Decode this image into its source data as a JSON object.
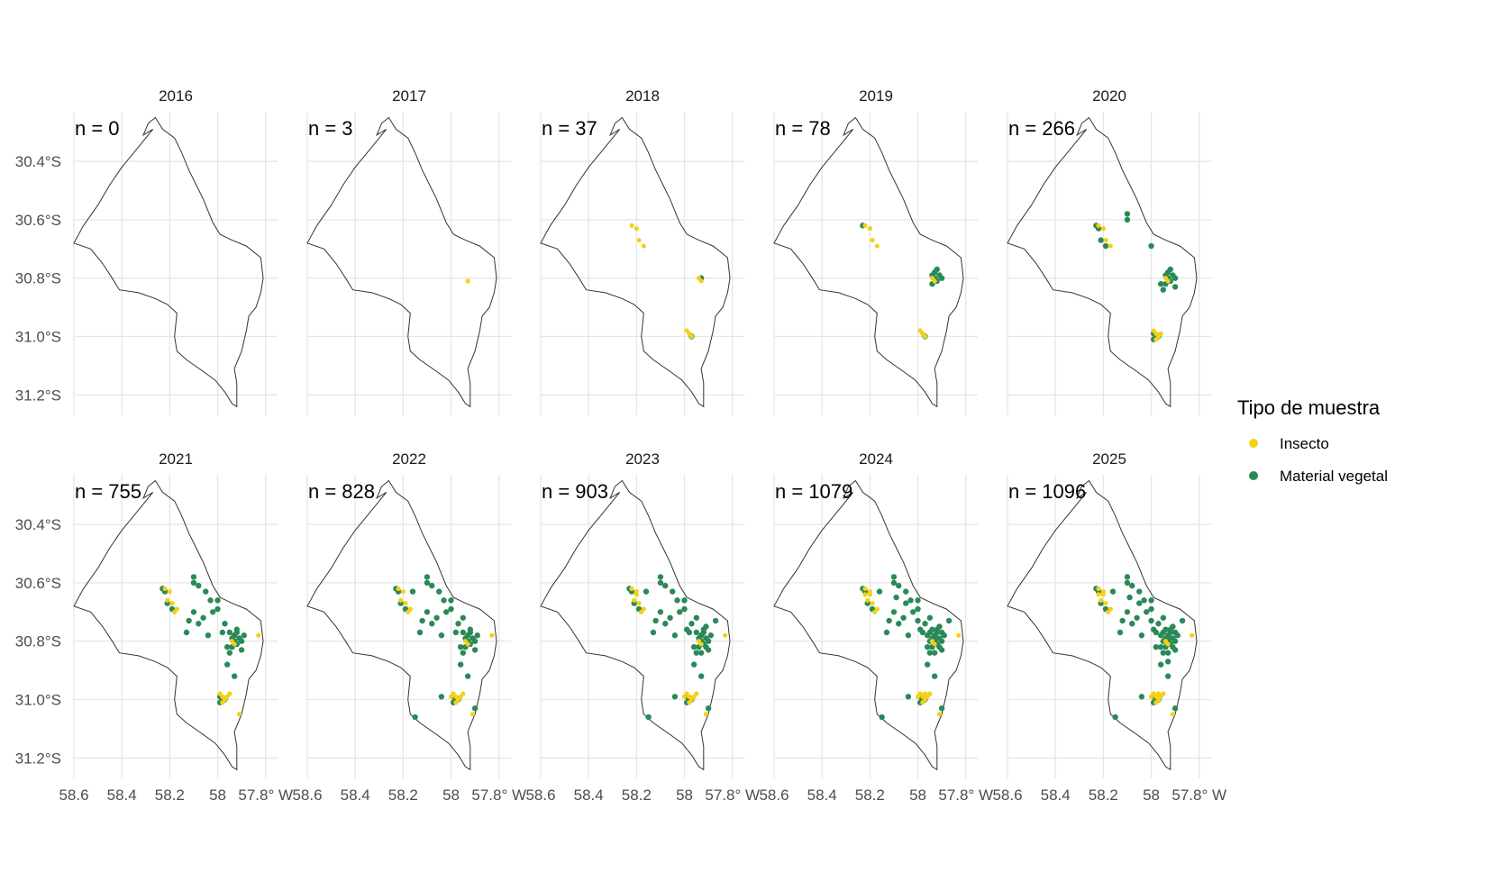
{
  "chart_data": {
    "type": "scatter",
    "subtype": "faceted-map",
    "facets": [
      {
        "title": "2016",
        "n_label": "n = 0"
      },
      {
        "title": "2017",
        "n_label": "n = 3"
      },
      {
        "title": "2018",
        "n_label": "n = 37"
      },
      {
        "title": "2019",
        "n_label": "n = 78"
      },
      {
        "title": "2020",
        "n_label": "n = 266"
      },
      {
        "title": "2021",
        "n_label": "n = 755"
      },
      {
        "title": "2022",
        "n_label": "n = 828"
      },
      {
        "title": "2023",
        "n_label": "n = 903"
      },
      {
        "title": "2024",
        "n_label": "n = 1079"
      },
      {
        "title": "2025",
        "n_label": "n = 1096"
      }
    ],
    "x_ticks": [
      "58.6",
      "58.4",
      "58.2",
      "58",
      "57.8° W"
    ],
    "y_ticks": [
      "30.4°S",
      "30.6°S",
      "30.8°S",
      "31.0°S",
      "31.2°S"
    ],
    "x_range": [
      58.6,
      57.75
    ],
    "y_range": [
      30.23,
      31.27
    ],
    "grid": true,
    "legend": {
      "title": "Tipo de muestra",
      "placement": "right",
      "entries": [
        {
          "label": "Insecto",
          "color": "#F5D016"
        },
        {
          "label": "Material vegetal",
          "color": "#2A8A57"
        }
      ]
    },
    "colors": {
      "insect": "#F5D016",
      "plant": "#2A8A57",
      "outline": "#333333",
      "grid": "#e6e6e6"
    },
    "boundary": [
      [
        58.26,
        30.25
      ],
      [
        58.23,
        30.29
      ],
      [
        58.18,
        30.32
      ],
      [
        58.15,
        30.37
      ],
      [
        58.12,
        30.43
      ],
      [
        58.09,
        30.48
      ],
      [
        58.06,
        30.53
      ],
      [
        58.04,
        30.57
      ],
      [
        58.02,
        30.61
      ],
      [
        57.99,
        30.65
      ],
      [
        57.94,
        30.67
      ],
      [
        57.88,
        30.69
      ],
      [
        57.82,
        30.73
      ],
      [
        57.81,
        30.8
      ],
      [
        57.82,
        30.85
      ],
      [
        57.84,
        30.9
      ],
      [
        57.87,
        30.93
      ],
      [
        57.88,
        30.98
      ],
      [
        57.9,
        31.05
      ],
      [
        57.93,
        31.11
      ],
      [
        57.92,
        31.16
      ],
      [
        57.92,
        31.24
      ],
      [
        57.94,
        31.23
      ],
      [
        57.97,
        31.19
      ],
      [
        58.01,
        31.15
      ],
      [
        58.06,
        31.12
      ],
      [
        58.13,
        31.08
      ],
      [
        58.17,
        31.05
      ],
      [
        58.18,
        31.0
      ],
      [
        58.17,
        30.92
      ],
      [
        58.21,
        30.89
      ],
      [
        58.26,
        30.87
      ],
      [
        58.33,
        30.85
      ],
      [
        58.41,
        30.84
      ],
      [
        58.44,
        30.8
      ],
      [
        58.48,
        30.75
      ],
      [
        58.53,
        30.7
      ],
      [
        58.6,
        30.68
      ],
      [
        58.56,
        30.62
      ],
      [
        58.5,
        30.55
      ],
      [
        58.45,
        30.48
      ],
      [
        58.4,
        30.42
      ],
      [
        58.35,
        30.37
      ],
      [
        58.3,
        30.32
      ],
      [
        58.27,
        30.29
      ],
      [
        58.31,
        30.31
      ],
      [
        58.29,
        30.27
      ],
      [
        58.26,
        30.25
      ]
    ],
    "series": [
      {
        "name": "Insecto",
        "points": [
          [
            57.93,
            30.81
          ],
          [
            57.94,
            30.8
          ],
          [
            58.22,
            30.62
          ],
          [
            58.2,
            30.63
          ],
          [
            58.19,
            30.67
          ],
          [
            58.17,
            30.69
          ],
          [
            57.98,
            30.99
          ],
          [
            57.97,
            31.0
          ],
          [
            57.99,
            30.98
          ],
          [
            57.96,
            30.99
          ],
          [
            57.98,
            31.01
          ],
          [
            57.83,
            30.78
          ],
          [
            58.21,
            30.66
          ],
          [
            58.18,
            30.7
          ],
          [
            57.95,
            30.98
          ],
          [
            57.91,
            31.05
          ],
          [
            58.0,
            30.99
          ],
          [
            58.2,
            30.64
          ],
          [
            57.97,
            30.98
          ],
          [
            58.22,
            30.64
          ]
        ]
      },
      {
        "name": "Material vegetal",
        "points": [
          [
            57.93,
            30.8
          ],
          [
            57.97,
            31.0
          ],
          [
            58.23,
            30.62
          ],
          [
            57.92,
            30.77
          ],
          [
            57.94,
            30.82
          ],
          [
            57.91,
            30.79
          ],
          [
            57.93,
            30.78
          ],
          [
            57.9,
            30.8
          ],
          [
            57.94,
            30.79
          ],
          [
            57.92,
            30.81
          ],
          [
            58.21,
            30.67
          ],
          [
            58.19,
            30.69
          ],
          [
            58.1,
            30.6
          ],
          [
            58.0,
            30.69
          ],
          [
            57.95,
            30.84
          ],
          [
            57.96,
            30.82
          ],
          [
            57.98,
            31.0
          ],
          [
            57.99,
            30.99
          ],
          [
            57.99,
            31.01
          ],
          [
            57.9,
            30.83
          ],
          [
            58.22,
            30.63
          ],
          [
            58.1,
            30.58
          ],
          [
            58.08,
            30.61
          ],
          [
            58.05,
            30.63
          ],
          [
            58.03,
            30.66
          ],
          [
            57.97,
            30.74
          ],
          [
            57.98,
            30.77
          ],
          [
            57.95,
            30.77
          ],
          [
            57.92,
            30.76
          ],
          [
            57.89,
            30.78
          ],
          [
            58.13,
            30.77
          ],
          [
            58.1,
            30.7
          ],
          [
            58.08,
            30.74
          ],
          [
            58.04,
            30.78
          ],
          [
            57.96,
            30.88
          ],
          [
            57.93,
            30.92
          ],
          [
            58.02,
            30.7
          ],
          [
            58.0,
            30.66
          ],
          [
            58.06,
            30.72
          ],
          [
            58.12,
            30.73
          ],
          [
            58.04,
            30.99
          ],
          [
            57.9,
            31.03
          ],
          [
            58.15,
            31.06
          ],
          [
            58.16,
            30.63
          ],
          [
            57.95,
            30.72
          ],
          [
            57.91,
            30.75
          ],
          [
            57.87,
            30.73
          ],
          [
            57.99,
            30.76
          ],
          [
            57.93,
            30.84
          ],
          [
            57.91,
            30.82
          ],
          [
            57.9,
            30.77
          ],
          [
            57.95,
            30.8
          ],
          [
            57.92,
            30.79
          ],
          [
            57.94,
            30.76
          ],
          [
            57.96,
            30.78
          ],
          [
            58.0,
            30.73
          ],
          [
            58.05,
            30.67
          ],
          [
            58.09,
            30.65
          ],
          [
            57.98,
            30.82
          ],
          [
            57.93,
            30.87
          ]
        ]
      }
    ]
  }
}
